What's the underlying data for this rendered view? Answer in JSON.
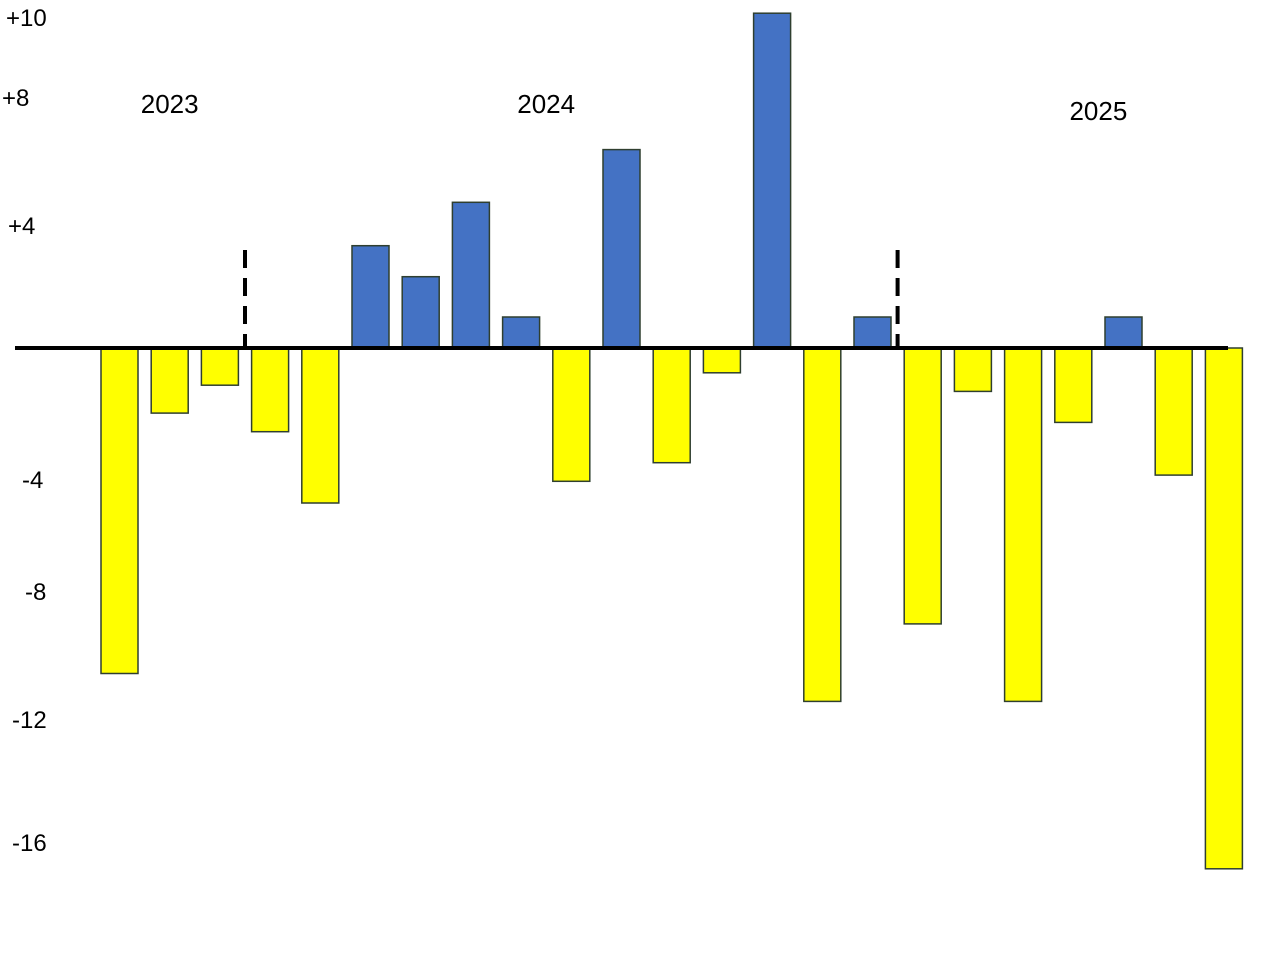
{
  "chart_data": {
    "type": "bar",
    "ylim": [
      -16.8,
      10.8
    ],
    "y_tick_labels": [
      {
        "value": 10,
        "label": "+10"
      },
      {
        "value": 8,
        "label": "+8"
      },
      {
        "value": 4,
        "label": "+4"
      },
      {
        "value": -4,
        "label": "-4"
      },
      {
        "value": -8,
        "label": "-8"
      },
      {
        "value": -12,
        "label": "-12"
      },
      {
        "value": -16,
        "label": "-16"
      }
    ],
    "year_labels": [
      {
        "label": "2023",
        "bar_index": 1
      },
      {
        "label": "2024",
        "bar_index": 8.5
      },
      {
        "label": "2025",
        "bar_index": 19.5
      }
    ],
    "dividers_after_bar": [
      2,
      15
    ],
    "values": [
      -10.5,
      -2.1,
      -1.2,
      -2.7,
      -5.0,
      3.3,
      2.3,
      4.7,
      1.0,
      -4.3,
      6.4,
      -3.7,
      -0.8,
      10.8,
      -11.4,
      1.0,
      -8.9,
      -1.4,
      -11.4,
      -2.4,
      1.0,
      -4.1,
      -16.8
    ],
    "colors": {
      "positive": "#4472c4",
      "negative": "#ffff00",
      "axis": "#000000",
      "bar_border": "#2f3f2f"
    },
    "grid": false,
    "legend": "none"
  }
}
